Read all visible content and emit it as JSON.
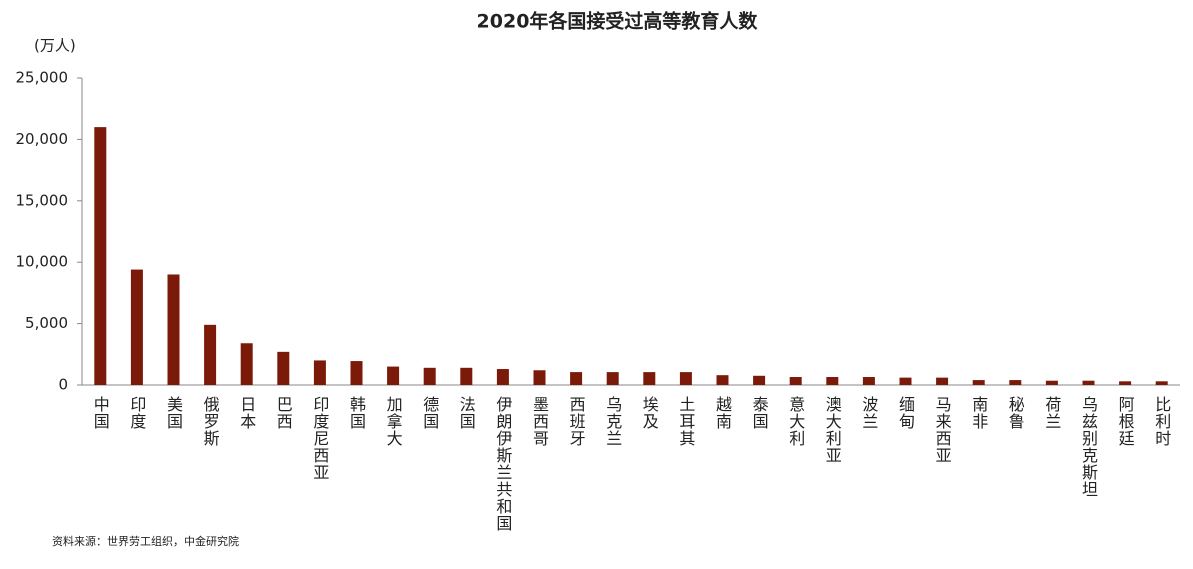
{
  "chart_data": {
    "type": "bar",
    "title": "2020年各国接受过高等教育人数",
    "y_label": "(万人)",
    "source": "资料来源：世界劳工组织，中金研究院",
    "categories": [
      "中国",
      "印度",
      "美国",
      "俄罗斯",
      "日本",
      "巴西",
      "印度尼西亚",
      "韩国",
      "加拿大",
      "德国",
      "法国",
      "伊朗伊斯兰共和国",
      "墨西哥",
      "西班牙",
      "乌克兰",
      "埃及",
      "土耳其",
      "越南",
      "泰国",
      "意大利",
      "澳大利亚",
      "波兰",
      "缅甸",
      "马来西亚",
      "南非",
      "秘鲁",
      "荷兰",
      "乌兹别克斯坦",
      "阿根廷",
      "比利时"
    ],
    "values": [
      21000,
      9400,
      9000,
      4900,
      3400,
      2700,
      2000,
      1950,
      1500,
      1400,
      1400,
      1300,
      1200,
      1050,
      1050,
      1050,
      1050,
      800,
      750,
      650,
      650,
      650,
      600,
      600,
      400,
      400,
      350,
      350,
      300,
      300
    ],
    "color": "#7b1a08",
    "ylim": [
      0,
      25000
    ],
    "yticks": [
      0,
      {
        "value": 5000,
        "label": "5,000"
      },
      {
        "value": 10000,
        "label": "10,000"
      },
      {
        "value": 15000,
        "label": "15,000"
      },
      {
        "value": 20000,
        "label": "20,000"
      },
      {
        "value": 25000,
        "label": "25,000"
      }
    ]
  }
}
